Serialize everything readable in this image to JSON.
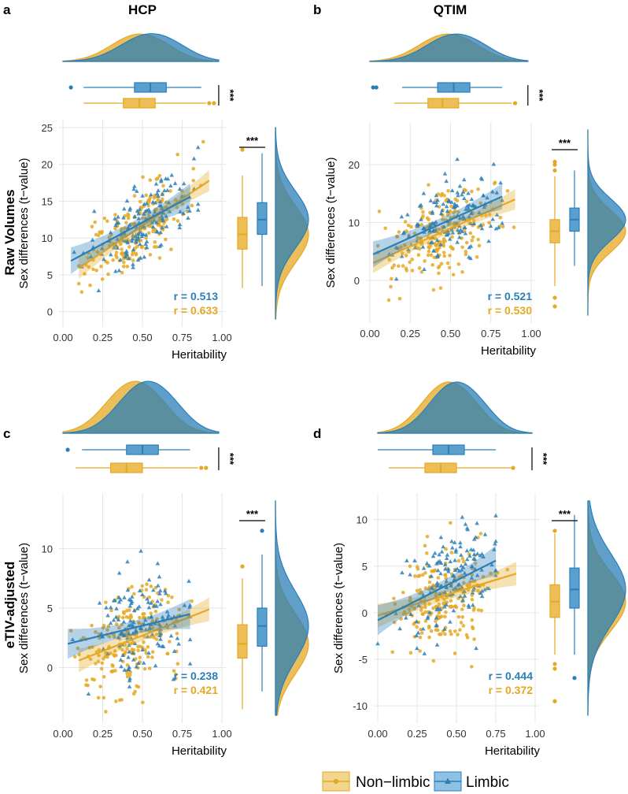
{
  "colors": {
    "nonlimbic": "#E5A823",
    "limbic": "#2A7FB8",
    "overlap": "#2F7A85",
    "grid": "#E6E6E6",
    "text": "#333333"
  },
  "row_labels": {
    "raw": "Raw Volumes",
    "etiv": "eTIV-adjusted"
  },
  "legend": {
    "nonlimbic": "Non−limbic",
    "limbic": "Limbic"
  },
  "chart_data": [
    {
      "panel": "a",
      "title": "HCP",
      "type": "scatter",
      "xlabel": "Heritability",
      "ylabel": "Sex differences (t−value)",
      "xlim": [
        0,
        1
      ],
      "ylim": [
        -1,
        25
      ],
      "xticks": [
        "0.00",
        "0.25",
        "0.50",
        "0.75",
        "1.00"
      ],
      "yticks": [
        "0",
        "5",
        "10",
        "15",
        "20",
        "25"
      ],
      "series": [
        {
          "name": "Limbic",
          "r": "r = 0.513",
          "fit": [
            [
              0.05,
              6.9
            ],
            [
              0.8,
              15.6
            ]
          ],
          "x_range": [
            0.05,
            0.85
          ],
          "x_center": 0.52,
          "x_spread": 0.17,
          "y_spread": 2.6,
          "box": {
            "min": 3.5,
            "q1": 10.5,
            "median": 12.5,
            "q3": 14.8,
            "max": 21.5
          },
          "xbox": {
            "min": 0.13,
            "q1": 0.45,
            "median": 0.55,
            "q3": 0.65,
            "max": 0.87,
            "outliers": [
              0.05
            ]
          }
        },
        {
          "name": "Non-limbic",
          "r": "r = 0.633",
          "fit": [
            [
              0.1,
              5.9
            ],
            [
              0.92,
              17.8
            ]
          ],
          "x_range": [
            0.1,
            0.92
          ],
          "x_center": 0.45,
          "x_spread": 0.16,
          "y_spread": 2.4,
          "box": {
            "min": 3.2,
            "q1": 8.5,
            "median": 10.5,
            "q3": 12.8,
            "max": 18.5,
            "outliers": [
              22
            ]
          },
          "xbox": {
            "min": 0.13,
            "q1": 0.38,
            "median": 0.48,
            "q3": 0.58,
            "max": 0.9,
            "outliers": [
              0.92,
              0.95
            ]
          }
        }
      ],
      "significance": "***"
    },
    {
      "panel": "b",
      "title": "QTIM",
      "type": "scatter",
      "xlabel": "Heritability",
      "ylabel": "Sex differences (t−value)",
      "xlim": [
        0,
        1
      ],
      "ylim": [
        -6,
        26
      ],
      "xticks": [
        "0.00",
        "0.25",
        "0.50",
        "0.75",
        "1.00"
      ],
      "yticks": [
        "0",
        "10",
        "20"
      ],
      "series": [
        {
          "name": "Limbic",
          "r": "r = 0.521",
          "fit": [
            [
              0.02,
              4.5
            ],
            [
              0.82,
              14.5
            ]
          ],
          "x_range": [
            0.02,
            0.82
          ],
          "x_center": 0.5,
          "x_spread": 0.16,
          "y_spread": 3.5,
          "box": {
            "min": 2.5,
            "q1": 8.5,
            "median": 10.5,
            "q3": 12.5,
            "max": 19
          },
          "xbox": {
            "min": 0.2,
            "q1": 0.42,
            "median": 0.52,
            "q3": 0.62,
            "max": 0.82,
            "outliers": [
              0.02,
              0.04
            ]
          }
        },
        {
          "name": "Non-limbic",
          "r": "r = 0.530",
          "fit": [
            [
              0.02,
              3.0
            ],
            [
              0.9,
              14.0
            ]
          ],
          "x_range": [
            0.05,
            0.9
          ],
          "x_center": 0.45,
          "x_spread": 0.16,
          "y_spread": 3.5,
          "box": {
            "min": -1,
            "q1": 6.5,
            "median": 8.5,
            "q3": 10.5,
            "max": 18,
            "outliers": [
              -3,
              -4.5,
              19,
              20,
              20.5
            ]
          },
          "xbox": {
            "min": 0.15,
            "q1": 0.36,
            "median": 0.45,
            "q3": 0.55,
            "max": 0.88,
            "outliers": [
              0.9
            ]
          }
        }
      ],
      "significance": "***"
    },
    {
      "panel": "c",
      "title": "",
      "type": "scatter",
      "xlabel": "Heritability",
      "ylabel": "Sex differences (t−value)",
      "xlim": [
        0,
        1
      ],
      "ylim": [
        -4,
        14
      ],
      "xticks": [
        "0.00",
        "0.25",
        "0.50",
        "0.75",
        "1.00"
      ],
      "yticks": [
        "0",
        "5",
        "10"
      ],
      "series": [
        {
          "name": "Limbic",
          "r": "r = 0.238",
          "fit": [
            [
              0.03,
              2.0
            ],
            [
              0.8,
              4.5
            ]
          ],
          "x_range": [
            0.03,
            0.8
          ],
          "x_center": 0.5,
          "x_spread": 0.16,
          "y_spread": 2.3,
          "box": {
            "min": -2,
            "q1": 1.8,
            "median": 3.5,
            "q3": 5.0,
            "max": 9.5,
            "outliers": [
              11.5
            ]
          },
          "xbox": {
            "min": 0.12,
            "q1": 0.4,
            "median": 0.5,
            "q3": 0.6,
            "max": 0.8,
            "outliers": [
              0.03
            ]
          }
        },
        {
          "name": "Non-limbic",
          "r": "r = 0.421",
          "fit": [
            [
              0.1,
              0.6
            ],
            [
              0.92,
              4.9
            ]
          ],
          "x_range": [
            0.05,
            0.92
          ],
          "x_center": 0.42,
          "x_spread": 0.16,
          "y_spread": 2.2,
          "box": {
            "min": -3.5,
            "q1": 0.8,
            "median": 2.0,
            "q3": 3.6,
            "max": 7.5,
            "outliers": [
              8.5
            ]
          },
          "xbox": {
            "min": 0.08,
            "q1": 0.3,
            "median": 0.4,
            "q3": 0.5,
            "max": 0.85,
            "outliers": [
              0.87,
              0.9
            ]
          }
        }
      ],
      "significance": "***"
    },
    {
      "panel": "d",
      "title": "",
      "type": "scatter",
      "xlabel": "Heritability",
      "ylabel": "Sex differences (t−value)",
      "xlim": [
        0,
        1
      ],
      "ylim": [
        -11,
        12
      ],
      "xticks": [
        "0.00",
        "0.25",
        "0.50",
        "0.75",
        "1.00"
      ],
      "yticks": [
        "-10",
        "-5",
        "0",
        "5",
        "10"
      ],
      "series": [
        {
          "name": "Limbic",
          "r": "r = 0.444",
          "fit": [
            [
              0.0,
              -0.8
            ],
            [
              0.75,
              5.6
            ]
          ],
          "x_range": [
            0.0,
            0.75
          ],
          "x_center": 0.47,
          "x_spread": 0.15,
          "y_spread": 2.8,
          "box": {
            "min": -4.5,
            "q1": 0.5,
            "median": 2.5,
            "q3": 4.8,
            "max": 10.5,
            "outliers": [
              -7
            ]
          },
          "xbox": {
            "min": 0.0,
            "q1": 0.35,
            "median": 0.45,
            "q3": 0.55,
            "max": 0.75
          }
        },
        {
          "name": "Non-limbic",
          "r": "r = 0.372",
          "fit": [
            [
              0.0,
              -0.3
            ],
            [
              0.88,
              4.2
            ]
          ],
          "x_range": [
            0.05,
            0.88
          ],
          "x_center": 0.42,
          "x_spread": 0.15,
          "y_spread": 2.8,
          "box": {
            "min": -4.5,
            "q1": -0.5,
            "median": 1.2,
            "q3": 3.0,
            "max": 8.5,
            "outliers": [
              -5.5,
              -6,
              -9.5,
              8.8
            ]
          },
          "xbox": {
            "min": 0.07,
            "q1": 0.3,
            "median": 0.4,
            "q3": 0.5,
            "max": 0.85,
            "outliers": [
              0.86
            ]
          }
        }
      ],
      "significance": "***"
    }
  ]
}
